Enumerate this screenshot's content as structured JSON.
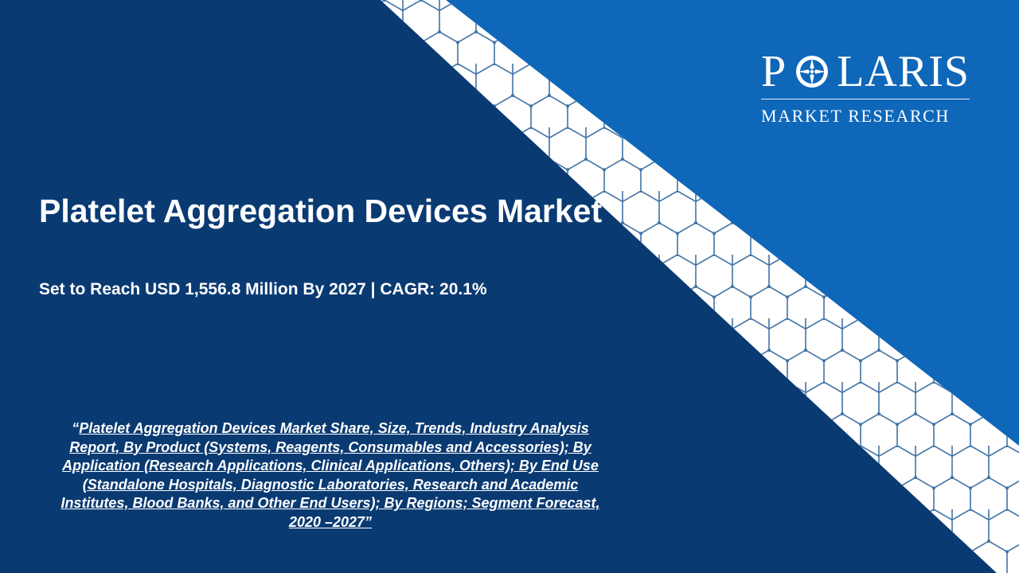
{
  "brand": {
    "name_left": "P",
    "name_right": "LARIS",
    "tagline": "MARKET RESEARCH",
    "logo_icon": "compass-star-icon"
  },
  "slide": {
    "title": "Platelet Aggregation Devices Market",
    "subtitle": "Set to Reach USD 1,556.8 Million By 2027 | CAGR: 20.1%",
    "report_open_quote": "“",
    "report_link": "Platelet Aggregation Devices Market Share, Size, Trends, Industry Analysis Report, By Product (Systems, Reagents, Consumables and Accessories); By Application (Research Applications, Clinical Applications, Others); By End Use (Standalone Hospitals, Diagnostic Laboratories, Research and Academic Institutes, Blood Banks, and Other End Users); By Regions; Segment Forecast, 2020 –2027”"
  },
  "colors": {
    "navy": "#0a3a72",
    "bright_blue": "#0f67b9",
    "band_white": "#ffffff",
    "hex_line": "#1e5a94",
    "text": "#ffffff"
  }
}
